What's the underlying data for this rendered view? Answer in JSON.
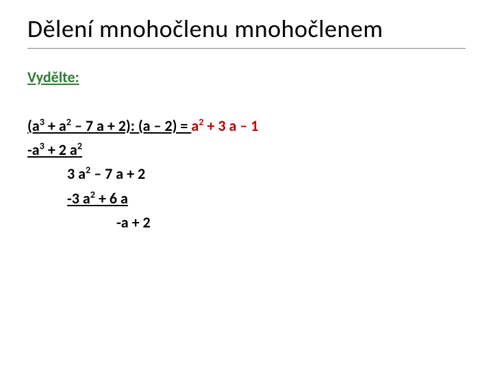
{
  "title": "Dělení mnohočlenu mnohočlenem",
  "subheading_text": "Vydělte:",
  "subheading_color": "#2e7d32",
  "result_color": "#c00000",
  "text_color": "#000000",
  "font_size_title": 36,
  "font_size_body": 22,
  "line1": {
    "lhs_open": "(a",
    "sup1": "3",
    "mid1": " + a",
    "sup2": "2",
    "mid2": " – 7 a + 2): (a – 2) = ",
    "rhs_a": "a",
    "rhs_sup": "2",
    "rhs_tail": " + 3 a – 1"
  },
  "line2": {
    "pre": "-a",
    "sup1": "3",
    "mid": " + 2 a",
    "sup2": "2"
  },
  "line3": {
    "pre": "3 a",
    "sup": "2",
    "tail": " – 7 a + 2"
  },
  "line4": {
    "pre": "-3 a",
    "sup": "2",
    "tail": " + 6 a"
  },
  "line5": {
    "text": "-a + 2"
  }
}
